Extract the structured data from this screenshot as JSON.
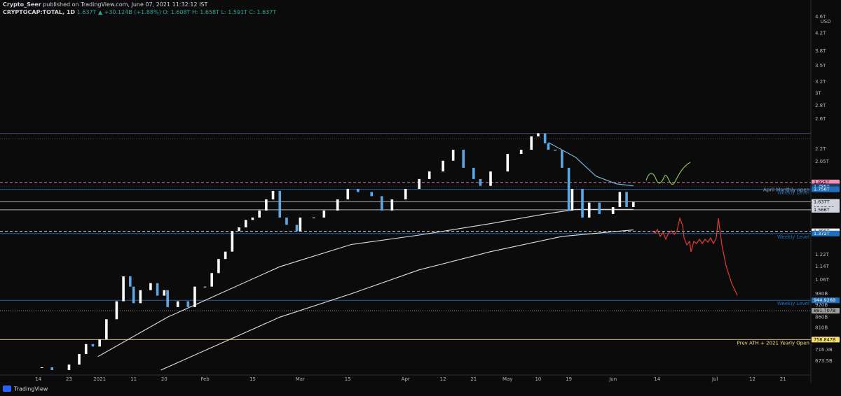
{
  "header": {
    "publisher": "Crypto_Seer",
    "published": "published on TradingView.com, June 07, 2021 11:32:12 IST",
    "symbol": "CRYPTOCAP:TOTAL, 1D",
    "last": "1.637T",
    "change": "▲ +30.124B (+1.88%)",
    "ohlc": "O: 1.608T H: 1.658T L: 1.591T C: 1.637T"
  },
  "footer": {
    "brand": "TradingView"
  },
  "chart_data": {
    "type": "candlestick",
    "currency": "USD",
    "log_scale": true,
    "grid": false,
    "up_color": "#ffffff",
    "down_color": "#5aa9e6",
    "x": [
      1,
      4,
      9,
      12,
      14,
      16,
      18,
      20,
      23,
      25,
      27,
      28,
      30,
      33,
      35,
      37,
      38,
      41,
      44,
      46,
      49,
      51,
      53,
      55,
      57,
      59,
      61,
      63,
      65,
      67,
      69,
      71,
      73,
      76,
      77,
      81,
      84,
      88,
      91,
      94,
      98,
      101,
      104,
      108,
      112,
      115,
      119,
      122,
      125,
      128,
      130,
      133,
      138,
      142,
      145,
      147,
      149,
      150,
      152,
      154,
      156,
      157,
      160,
      162,
      165,
      169,
      171,
      173,
      175
    ],
    "values": [
      0.65,
      0.64,
      0.66,
      0.7,
      0.74,
      0.73,
      0.76,
      0.85,
      0.94,
      1.08,
      1.02,
      0.93,
      1.0,
      1.04,
      0.97,
      1.0,
      0.91,
      0.94,
      0.91,
      1.02,
      1.02,
      1.1,
      1.19,
      1.24,
      1.39,
      1.42,
      1.48,
      1.5,
      1.56,
      1.66,
      1.74,
      1.5,
      1.44,
      1.39,
      1.5,
      1.5,
      1.56,
      1.66,
      1.76,
      1.73,
      1.69,
      1.56,
      1.66,
      1.76,
      1.86,
      1.94,
      2.06,
      2.19,
      1.98,
      1.86,
      1.79,
      1.94,
      2.14,
      2.19,
      2.36,
      2.4,
      2.27,
      2.19,
      2.19,
      1.98,
      1.56,
      1.76,
      1.5,
      1.63,
      1.53,
      1.59,
      1.73,
      1.59,
      1.637
    ],
    "overlays": [
      {
        "color": "#e0e0e0",
        "x": [
          17.5,
          38,
          71,
          92,
          112,
          133,
          149,
          158,
          175
        ],
        "values": [
          0.69,
          0.86,
          1.14,
          1.29,
          1.36,
          1.45,
          1.53,
          1.57,
          1.57
        ]
      },
      {
        "color": "#e0e0e0",
        "x": [
          36,
          71,
          92,
          112,
          133,
          154,
          175
        ],
        "values": [
          0.64,
          0.86,
          0.98,
          1.12,
          1.24,
          1.35,
          1.4
        ]
      },
      {
        "color": "#7fc3ea",
        "x": [
          150,
          158,
          164,
          170,
          175
        ],
        "values": [
          2.28,
          2.1,
          1.89,
          1.81,
          1.79
        ]
      }
    ],
    "levels": [
      {
        "value": 2.4,
        "color": "#5c4d7d",
        "style": "solid"
      },
      {
        "value": 2.33,
        "color": "#5c4d7d",
        "style": "dotted"
      },
      {
        "value": 1.825,
        "label": "1.825T",
        "color": "#f48fb1",
        "style": "dashed"
      },
      {
        "value": 1.785,
        "label": "1.785T",
        "color": "#1e3f66",
        "style": "dotted",
        "annotation": "April Monthly open"
      },
      {
        "value": 1.756,
        "label": "1.756T",
        "color": "#1e6fbf",
        "style": "solid",
        "annotation": "Weekly Level"
      },
      {
        "value": 1.637,
        "label": "1.637T",
        "sublabel": "17:57:56",
        "color": "#d1d4dc",
        "style": "solid"
      },
      {
        "value": 1.566,
        "label": "1.566T",
        "color": "#d1d4dc",
        "style": "solid"
      },
      {
        "value": 1.389,
        "label": "1.389T",
        "color": "#ffffff",
        "style": "dashed"
      },
      {
        "value": 1.372,
        "label": "1.372T",
        "color": "#1e6fbf",
        "style": "solid",
        "annotation": "Weekly Level"
      },
      {
        "value": 0.944926,
        "label": "944.926B",
        "color": "#1e6fbf",
        "style": "solid",
        "annotation": "Weekly Level"
      },
      {
        "value": 0.891707,
        "label": "891.707B",
        "color": "#9e9e9e",
        "style": "dotted"
      },
      {
        "value": 0.758847,
        "label": "758.847B",
        "color": "#f5e26b",
        "style": "solid",
        "annotation": "Prev ATH + 2021 Yearly Open"
      }
    ],
    "xlim": [
      -11.3,
      227.2
    ],
    "xticks": [
      {
        "value": 0,
        "label": "14"
      },
      {
        "value": 9,
        "label": "23"
      },
      {
        "value": 18,
        "label": "2021"
      },
      {
        "value": 28,
        "label": "11"
      },
      {
        "value": 37,
        "label": "20"
      },
      {
        "value": 49,
        "label": "Feb"
      },
      {
        "value": 63,
        "label": "15"
      },
      {
        "value": 77,
        "label": "Mar"
      },
      {
        "value": 91,
        "label": "15"
      },
      {
        "value": 108,
        "label": "Apr"
      },
      {
        "value": 119,
        "label": "12"
      },
      {
        "value": 128,
        "label": "21"
      },
      {
        "value": 138,
        "label": "May"
      },
      {
        "value": 147,
        "label": "10"
      },
      {
        "value": 156,
        "label": "19"
      },
      {
        "value": 169,
        "label": "Jun"
      },
      {
        "value": 182,
        "label": "14"
      },
      {
        "value": 199,
        "label": "Jul"
      },
      {
        "value": 210,
        "label": "12"
      },
      {
        "value": 219,
        "label": "21"
      }
    ],
    "ylim": [
      0.613,
      4.86
    ],
    "yticks": [
      {
        "value": 4.6,
        "label": "4.6T"
      },
      {
        "value": 4.2,
        "label": "4.2T"
      },
      {
        "value": 3.8,
        "label": "3.8T"
      },
      {
        "value": 3.5,
        "label": "3.5T"
      },
      {
        "value": 3.2,
        "label": "3.2T"
      },
      {
        "value": 3,
        "label": "3T"
      },
      {
        "value": 2.8,
        "label": "2.8T"
      },
      {
        "value": 2.6,
        "label": "2.6T"
      },
      {
        "value": 2.2,
        "label": "2.2T"
      },
      {
        "value": 2.05,
        "label": "2.05T"
      },
      {
        "value": 1.22,
        "label": "1.22T"
      },
      {
        "value": 1.14,
        "label": "1.14T"
      },
      {
        "value": 1.06,
        "label": "1.06T"
      },
      {
        "value": 0.98,
        "label": "980B"
      },
      {
        "value": 0.92,
        "label": "920B"
      },
      {
        "value": 0.86,
        "label": "860B"
      },
      {
        "value": 0.81,
        "label": "810B"
      },
      {
        "value": 0.7163,
        "label": "716.3B"
      },
      {
        "value": 0.6735,
        "label": "673.5B"
      }
    ]
  }
}
